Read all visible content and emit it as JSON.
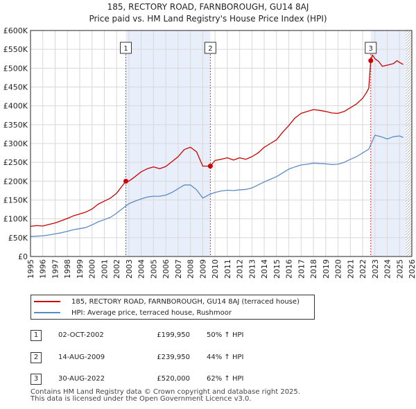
{
  "title": "185, RECTORY ROAD, FARNBOROUGH, GU14 8AJ",
  "subtitle": "Price paid vs. HM Land Registry's House Price Index (HPI)",
  "chart_data": {
    "type": "line",
    "xlim": [
      1995,
      2026
    ],
    "ylim": [
      0,
      600000
    ],
    "y_ticks": [
      0,
      50000,
      100000,
      150000,
      200000,
      250000,
      300000,
      350000,
      400000,
      450000,
      500000,
      550000,
      600000
    ],
    "y_tick_labels": [
      "£0",
      "£50K",
      "£100K",
      "£150K",
      "£200K",
      "£250K",
      "£300K",
      "£350K",
      "£400K",
      "£450K",
      "£500K",
      "£550K",
      "£600K"
    ],
    "x_ticks": [
      1995,
      1996,
      1997,
      1998,
      1999,
      2000,
      2001,
      2002,
      2003,
      2004,
      2005,
      2006,
      2007,
      2008,
      2009,
      2010,
      2011,
      2012,
      2013,
      2014,
      2015,
      2016,
      2017,
      2018,
      2019,
      2020,
      2021,
      2022,
      2023,
      2024,
      2025,
      2026
    ],
    "x_tick_labels": [
      "1995",
      "1996",
      "1997",
      "1998",
      "1999",
      "2000",
      "2001",
      "2002",
      "2003",
      "2004",
      "2005",
      "2006",
      "2007",
      "2008",
      "2009",
      "2010",
      "2011",
      "2012",
      "2013",
      "2014",
      "2015",
      "2016",
      "2017",
      "2018",
      "2019",
      "2020",
      "2021",
      "2022",
      "2023",
      "2024",
      "2025",
      "2026"
    ],
    "series": [
      {
        "name": "185, RECTORY ROAD, FARNBOROUGH, GU14 8AJ (terraced house)",
        "color": "#cc0000",
        "x": [
          1995.0,
          1995.5,
          1996.0,
          1996.5,
          1997.0,
          1997.5,
          1998.0,
          1998.5,
          1999.0,
          1999.5,
          2000.0,
          2000.5,
          2001.0,
          2001.5,
          2002.0,
          2002.75,
          2003.0,
          2003.5,
          2004.0,
          2004.5,
          2005.0,
          2005.5,
          2006.0,
          2006.5,
          2007.0,
          2007.5,
          2008.0,
          2008.5,
          2009.0,
          2009.62,
          2010.0,
          2010.5,
          2011.0,
          2011.5,
          2012.0,
          2012.5,
          2013.0,
          2013.5,
          2014.0,
          2014.5,
          2015.0,
          2015.5,
          2016.0,
          2016.5,
          2017.0,
          2017.5,
          2018.0,
          2018.5,
          2019.0,
          2019.5,
          2020.0,
          2020.5,
          2021.0,
          2021.5,
          2022.0,
          2022.3,
          2022.5,
          2022.66,
          2022.8,
          2023.0,
          2023.3,
          2023.6,
          2024.0,
          2024.5,
          2024.8,
          2025.0,
          2025.3
        ],
        "y": [
          80000,
          82000,
          81000,
          85000,
          89000,
          95000,
          101000,
          108000,
          113000,
          118000,
          126000,
          139000,
          147000,
          155000,
          168000,
          199950,
          200000,
          212000,
          225000,
          233000,
          238000,
          233000,
          239000,
          252000,
          265000,
          284000,
          290000,
          278000,
          240000,
          239950,
          255000,
          258000,
          262000,
          256000,
          262000,
          258000,
          265000,
          275000,
          290000,
          300000,
          310000,
          330000,
          348000,
          368000,
          380000,
          385000,
          390000,
          388000,
          385000,
          381000,
          380000,
          385000,
          395000,
          405000,
          420000,
          435000,
          447000,
          520000,
          535000,
          525000,
          518000,
          505000,
          508000,
          512000,
          520000,
          515000,
          510000
        ]
      },
      {
        "name": "HPI: Average price, terraced house, Rushmoor",
        "color": "#5b8bc4",
        "x": [
          1995.0,
          1995.5,
          1996.0,
          1996.5,
          1997.0,
          1997.5,
          1998.0,
          1998.5,
          1999.0,
          1999.5,
          2000.0,
          2000.5,
          2001.0,
          2001.5,
          2002.0,
          2002.5,
          2003.0,
          2003.5,
          2004.0,
          2004.5,
          2005.0,
          2005.5,
          2006.0,
          2006.5,
          2007.0,
          2007.5,
          2008.0,
          2008.5,
          2009.0,
          2009.5,
          2010.0,
          2010.5,
          2011.0,
          2011.5,
          2012.0,
          2012.5,
          2013.0,
          2013.5,
          2014.0,
          2014.5,
          2015.0,
          2015.5,
          2016.0,
          2016.5,
          2017.0,
          2017.5,
          2018.0,
          2018.5,
          2019.0,
          2019.5,
          2020.0,
          2020.5,
          2021.0,
          2021.5,
          2022.0,
          2022.5,
          2023.0,
          2023.5,
          2024.0,
          2024.5,
          2025.0,
          2025.3
        ],
        "y": [
          53000,
          54000,
          55000,
          57000,
          60000,
          63000,
          67000,
          71000,
          74000,
          77000,
          84000,
          92000,
          98000,
          104000,
          115000,
          128000,
          140000,
          147000,
          153000,
          158000,
          160000,
          160000,
          163000,
          170000,
          180000,
          190000,
          190000,
          177000,
          155000,
          164000,
          170000,
          174000,
          176000,
          175000,
          177000,
          178000,
          182000,
          190000,
          198000,
          205000,
          212000,
          222000,
          232000,
          238000,
          243000,
          245000,
          248000,
          247000,
          246000,
          244000,
          245000,
          250000,
          258000,
          265000,
          275000,
          285000,
          322000,
          318000,
          312000,
          318000,
          320000,
          316000
        ]
      }
    ],
    "sales": [
      {
        "label": "1",
        "x": 2002.75,
        "y": 199950
      },
      {
        "label": "2",
        "x": 2009.62,
        "y": 239950
      },
      {
        "label": "3",
        "x": 2022.66,
        "y": 520000
      }
    ],
    "shade_ranges": [
      [
        2002.75,
        2009.62
      ],
      [
        2022.66,
        2025.5
      ]
    ],
    "hatch_from": 2025.5
  },
  "legend": {
    "property_label": "185, RECTORY ROAD, FARNBOROUGH, GU14 8AJ (terraced house)",
    "hpi_label": "HPI: Average price, terraced house, Rushmoor"
  },
  "sales_table": [
    {
      "num": "1",
      "date": "02-OCT-2002",
      "price": "£199,950",
      "hpi": "50% ↑ HPI"
    },
    {
      "num": "2",
      "date": "14-AUG-2009",
      "price": "£239,950",
      "hpi": "44% ↑ HPI"
    },
    {
      "num": "3",
      "date": "30-AUG-2022",
      "price": "£520,000",
      "hpi": "62% ↑ HPI"
    }
  ],
  "footer": {
    "line1": "Contains HM Land Registry data © Crown copyright and database right 2025.",
    "line2": "This data is licensed under the Open Government Licence v3.0."
  }
}
